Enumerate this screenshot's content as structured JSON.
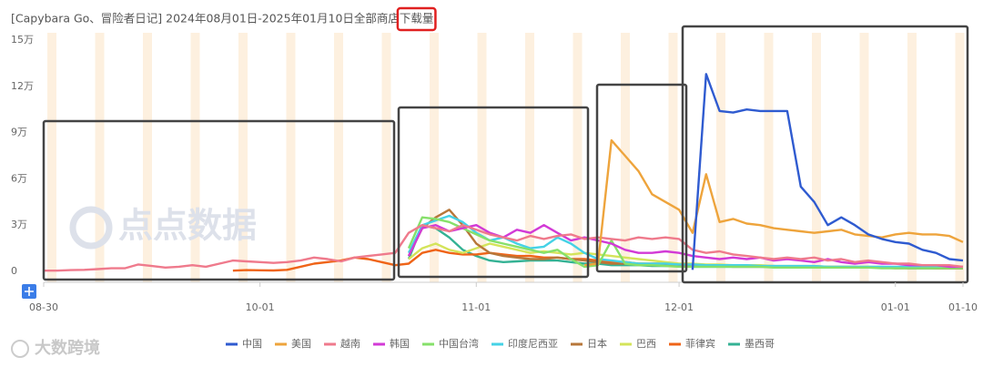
{
  "chart_data": {
    "type": "line",
    "title": "[Capybara Go、冒险者日记] 2024年08月01日-2025年01月10日全部商店",
    "title_highlight": "下载量",
    "watermark": "点点数据",
    "credit": "大数跨境",
    "categories": [
      "08-30",
      null,
      null,
      null,
      null,
      null,
      null,
      null,
      null,
      null,
      null,
      null,
      null,
      null,
      null,
      null,
      "10-01",
      null,
      null,
      null,
      null,
      null,
      null,
      null,
      null,
      null,
      null,
      null,
      null,
      null,
      null,
      null,
      "11-01",
      null,
      null,
      null,
      null,
      null,
      null,
      null,
      null,
      null,
      null,
      null,
      null,
      null,
      null,
      "12-01",
      null,
      null,
      null,
      null,
      null,
      null,
      null,
      null,
      null,
      null,
      null,
      null,
      null,
      null,
      null,
      "01-01",
      null,
      null,
      null,
      null,
      "01-10"
    ],
    "ylim": [
      0,
      150000
    ],
    "yticks": [
      0,
      {
        "value": 30000,
        "label": "3万"
      },
      {
        "value": 60000,
        "label": "6万"
      },
      {
        "value": 90000,
        "label": "9万"
      },
      {
        "value": 120000,
        "label": "12万"
      },
      {
        "value": 150000,
        "label": "15万"
      }
    ],
    "series": [
      {
        "name": "中国",
        "color": "#2f5bd0",
        "values": [
          null,
          null,
          null,
          null,
          null,
          null,
          null,
          null,
          null,
          null,
          null,
          null,
          null,
          null,
          null,
          null,
          null,
          null,
          null,
          null,
          null,
          null,
          null,
          null,
          null,
          null,
          null,
          null,
          null,
          null,
          null,
          null,
          null,
          null,
          null,
          null,
          null,
          null,
          null,
          null,
          null,
          null,
          null,
          null,
          null,
          null,
          null,
          null,
          1000,
          128000,
          104000,
          103000,
          105000,
          104000,
          104000,
          104000,
          55000,
          45000,
          30000,
          35000,
          30000,
          24000,
          21000,
          19000,
          18000,
          14000,
          12000,
          8000,
          7000
        ]
      },
      {
        "name": "美国",
        "color": "#eea43c",
        "values": [
          null,
          null,
          null,
          null,
          null,
          null,
          null,
          null,
          null,
          null,
          null,
          null,
          null,
          null,
          null,
          null,
          null,
          null,
          null,
          null,
          null,
          null,
          null,
          null,
          null,
          null,
          null,
          null,
          null,
          null,
          null,
          null,
          null,
          null,
          null,
          null,
          null,
          null,
          null,
          null,
          4000,
          5000,
          85000,
          75000,
          65000,
          50000,
          45000,
          40000,
          25000,
          63000,
          32000,
          34000,
          31000,
          30000,
          28000,
          27000,
          26000,
          25000,
          26000,
          27000,
          24000,
          23000,
          22000,
          24000,
          25000,
          24000,
          24000,
          23000,
          19000
        ]
      },
      {
        "name": "越南",
        "color": "#ef7a8c",
        "values": [
          500,
          500,
          800,
          1000,
          1500,
          2000,
          2000,
          4500,
          3500,
          2500,
          3000,
          4000,
          3000,
          5000,
          7000,
          6500,
          6000,
          5500,
          6000,
          7000,
          9000,
          8000,
          6500,
          9000,
          10000,
          11000,
          12000,
          25000,
          30000,
          28000,
          26000,
          30000,
          27000,
          24000,
          22000,
          20000,
          23000,
          21000,
          23000,
          24000,
          21000,
          22000,
          21000,
          20000,
          22000,
          21000,
          22000,
          21000,
          14000,
          12000,
          13000,
          11000,
          10000,
          9000,
          8000,
          9000,
          8000,
          9000,
          7000,
          8000,
          6000,
          7000,
          6000,
          5000,
          5000,
          4000,
          4000,
          4000,
          3000
        ]
      },
      {
        "name": "韩国",
        "color": "#d23ad6",
        "values": [
          null,
          null,
          null,
          null,
          null,
          null,
          null,
          null,
          null,
          null,
          null,
          null,
          null,
          null,
          null,
          null,
          null,
          null,
          null,
          null,
          null,
          null,
          null,
          null,
          null,
          null,
          null,
          10000,
          28000,
          30000,
          26000,
          28000,
          30000,
          25000,
          22000,
          27000,
          25000,
          30000,
          25000,
          20000,
          22000,
          20000,
          18000,
          14000,
          12000,
          12000,
          13000,
          12000,
          10000,
          9000,
          8000,
          9000,
          8000,
          9000,
          7000,
          8000,
          7000,
          6000,
          8000,
          6000,
          5000,
          6000,
          5000,
          5000,
          4000,
          4000,
          4000,
          3000,
          3000
        ]
      },
      {
        "name": "中国台湾",
        "color": "#86e06a",
        "values": [
          null,
          null,
          null,
          null,
          null,
          null,
          null,
          null,
          null,
          null,
          null,
          null,
          null,
          null,
          null,
          null,
          null,
          null,
          null,
          null,
          null,
          null,
          null,
          null,
          null,
          null,
          null,
          15000,
          35000,
          34000,
          32000,
          28000,
          24000,
          20000,
          18000,
          16000,
          14000,
          12000,
          14000,
          8000,
          3000,
          4000,
          20000,
          5000,
          4000,
          4000,
          3500,
          3000,
          3000,
          3000,
          3000,
          3000,
          3000,
          3000,
          2500,
          2500,
          2500,
          2500,
          2500,
          2500,
          2500,
          2500,
          2000,
          2000,
          2000,
          2000,
          2000,
          2000,
          2000
        ]
      },
      {
        "name": "印度尼西亚",
        "color": "#45d2e6",
        "values": [
          null,
          null,
          null,
          null,
          null,
          null,
          null,
          null,
          null,
          null,
          null,
          null,
          null,
          null,
          null,
          null,
          null,
          null,
          null,
          null,
          null,
          null,
          null,
          null,
          null,
          null,
          null,
          12000,
          30000,
          33000,
          36000,
          32000,
          25000,
          20000,
          22000,
          18000,
          15000,
          16000,
          22000,
          18000,
          12000,
          8000,
          7000,
          6000,
          5000,
          5000,
          5000,
          4500,
          4500,
          4000,
          4000,
          4000,
          4000,
          3500,
          3500,
          3500,
          3500,
          3500,
          3000,
          3000,
          3000,
          3000,
          3000,
          3000,
          3000,
          3000,
          3000,
          3000,
          3000
        ]
      },
      {
        "name": "日本",
        "color": "#b7773a",
        "values": [
          null,
          null,
          null,
          null,
          null,
          null,
          null,
          null,
          null,
          null,
          null,
          null,
          null,
          null,
          null,
          null,
          null,
          null,
          null,
          null,
          null,
          null,
          null,
          null,
          null,
          null,
          null,
          10000,
          28000,
          35000,
          40000,
          30000,
          18000,
          12000,
          10000,
          9000,
          8000,
          8000,
          9000,
          8000,
          7000,
          6000,
          5000,
          5000,
          4500,
          4000,
          4000,
          4000,
          3500,
          3500,
          3500,
          3000,
          3000,
          3000,
          3000,
          3000,
          3000,
          2500,
          2500,
          2500,
          2500,
          2500,
          2500,
          2000,
          2000,
          2000,
          2000,
          2000,
          2000
        ]
      },
      {
        "name": "巴西",
        "color": "#d4e45a",
        "values": [
          null,
          null,
          null,
          null,
          null,
          null,
          null,
          null,
          null,
          null,
          null,
          null,
          null,
          null,
          null,
          null,
          null,
          null,
          null,
          null,
          null,
          null,
          null,
          null,
          null,
          null,
          null,
          8000,
          15000,
          18000,
          14000,
          12000,
          15000,
          18000,
          16000,
          14000,
          12000,
          13000,
          12000,
          11000,
          12000,
          11000,
          10000,
          9000,
          8000,
          7000,
          6000,
          5000,
          5000,
          4500,
          4500,
          4000,
          4000,
          4000,
          3500,
          3500,
          3500,
          3500,
          3000,
          3000,
          3000,
          3000,
          3000,
          2500,
          2500,
          2500,
          2500,
          2500,
          2500
        ]
      },
      {
        "name": "菲律宾",
        "color": "#ef6418",
        "values": [
          null,
          null,
          null,
          null,
          null,
          null,
          null,
          null,
          null,
          null,
          null,
          null,
          null,
          null,
          500,
          800,
          700,
          600,
          1000,
          3000,
          5000,
          6000,
          7000,
          9000,
          8000,
          6000,
          4000,
          5000,
          12000,
          14000,
          12000,
          11000,
          11000,
          12000,
          11000,
          10000,
          10000,
          9000,
          9000,
          8000,
          8000,
          7000,
          6000,
          6000,
          5000,
          5000,
          5000,
          4500,
          4000,
          4000,
          4000,
          3500,
          3500,
          3500,
          3500,
          3000,
          3000,
          3000,
          3000,
          3000,
          3000,
          2500,
          2500,
          2500,
          2500,
          2500,
          2000,
          2000,
          2000
        ]
      },
      {
        "name": "墨西哥",
        "color": "#34b294",
        "values": [
          null,
          null,
          null,
          null,
          null,
          null,
          null,
          null,
          null,
          null,
          null,
          null,
          null,
          null,
          null,
          null,
          null,
          null,
          null,
          null,
          null,
          null,
          null,
          null,
          null,
          null,
          null,
          8000,
          30000,
          28000,
          22000,
          14000,
          10000,
          7000,
          6000,
          6500,
          7000,
          7000,
          7000,
          6000,
          5000,
          5000,
          4000,
          4000,
          4000,
          3500,
          3500,
          3500,
          3000,
          3000,
          3000,
          3000,
          3000,
          3000,
          3000,
          3000,
          3000,
          2500,
          2500,
          2500,
          2500,
          2500,
          2500,
          2500,
          2000,
          2000,
          2000,
          2000,
          2000
        ]
      }
    ]
  }
}
